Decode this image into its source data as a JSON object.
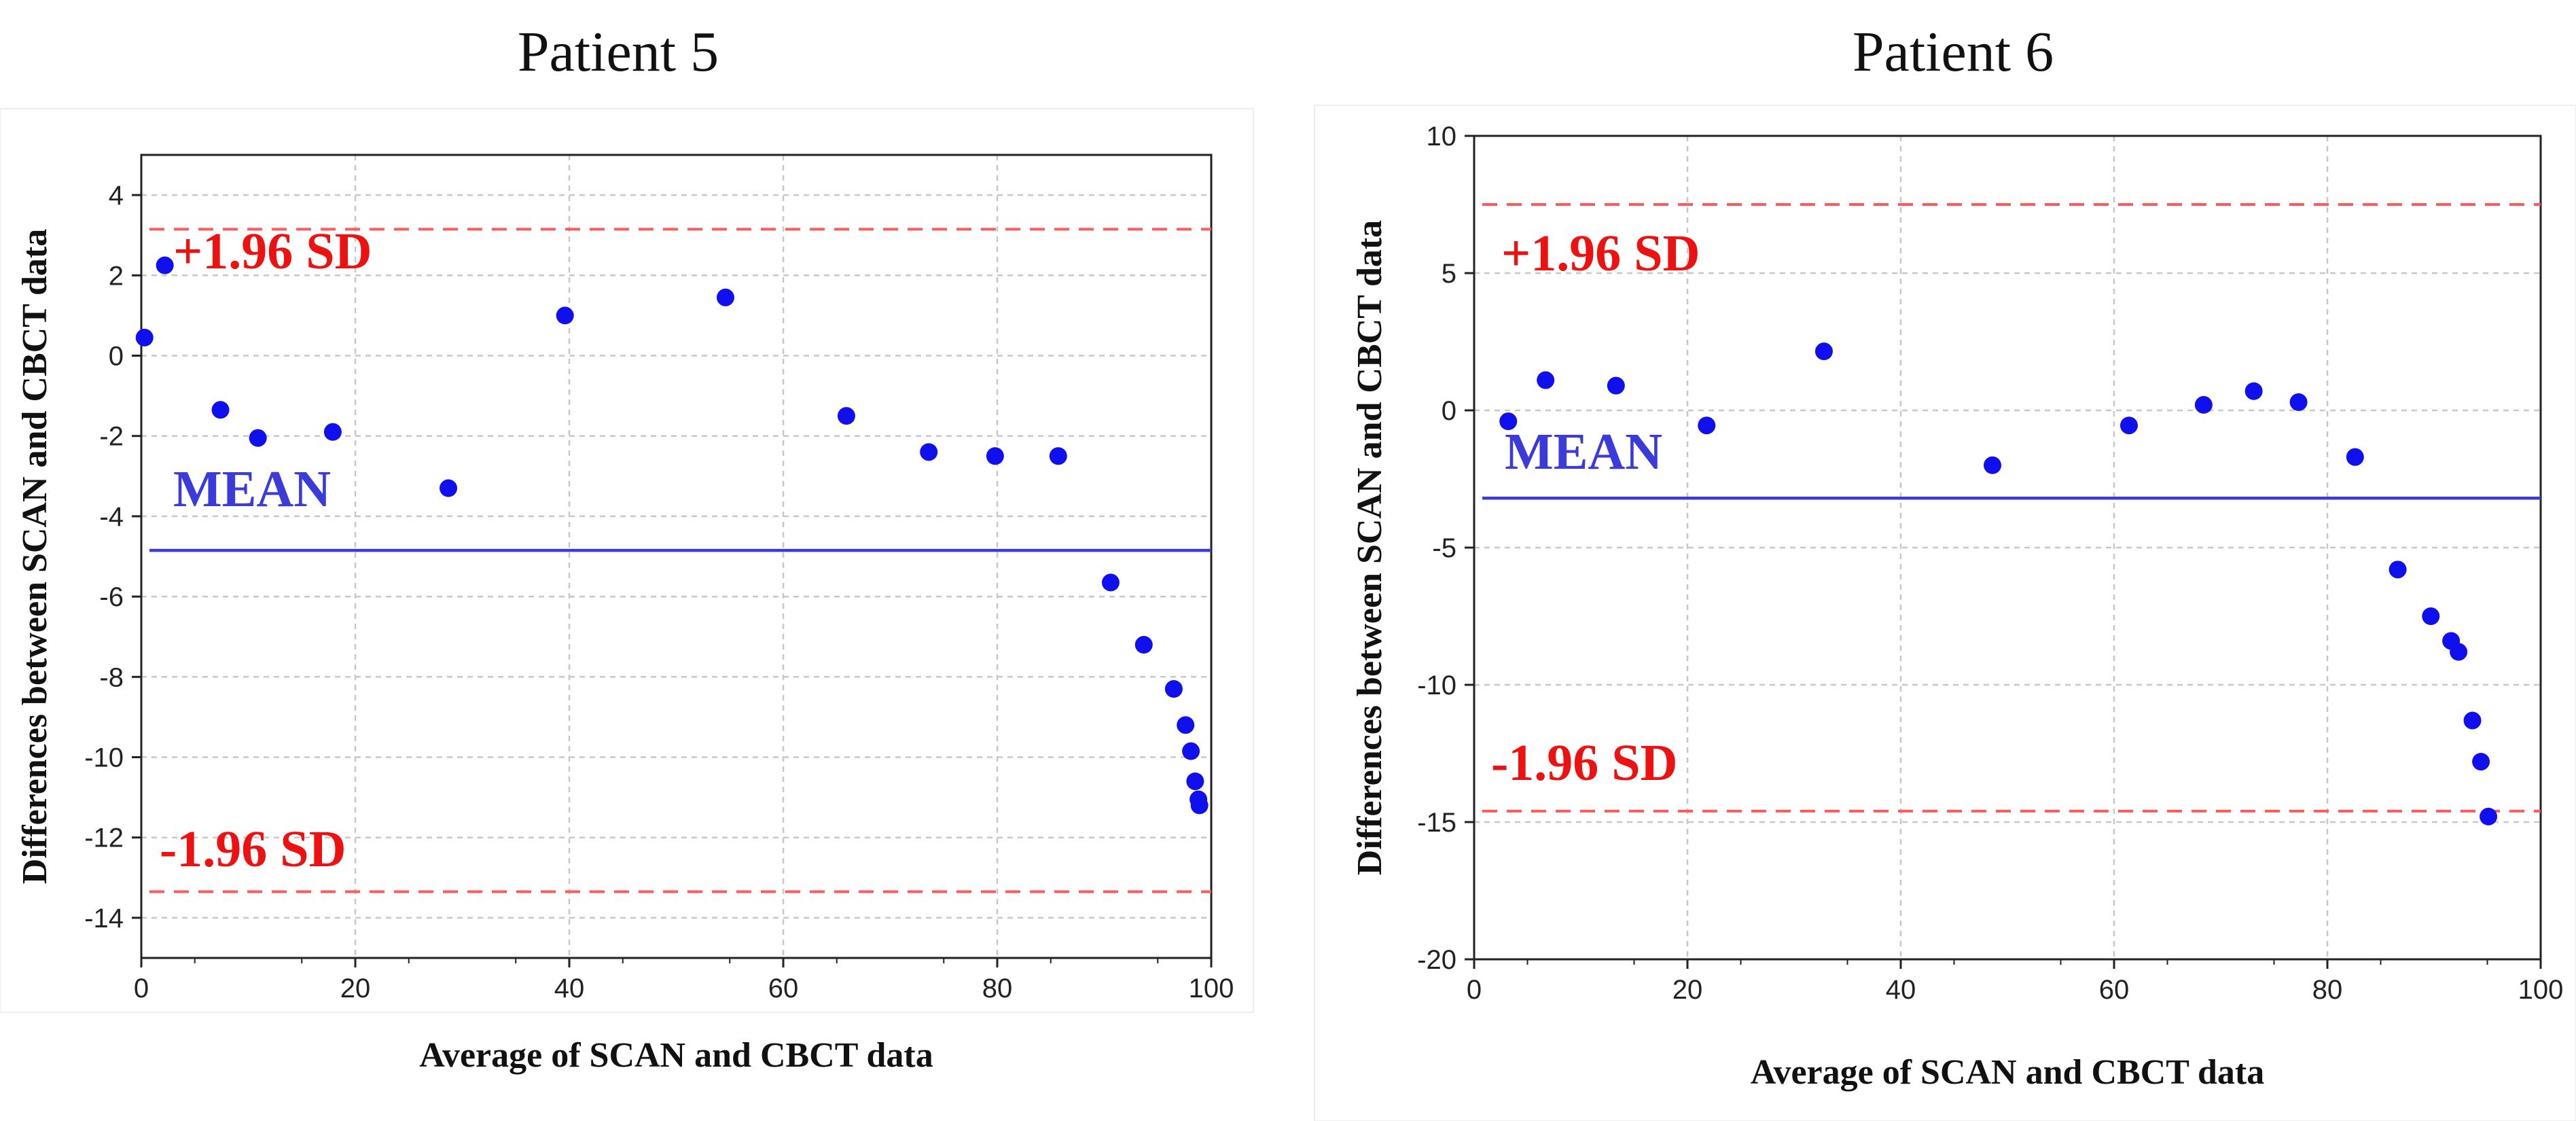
{
  "page": {
    "titles": [
      "Patient 5",
      "Patient 6"
    ]
  },
  "colors": {
    "point": "#1010ee",
    "mean": "#3b3bdc",
    "sd": "#ff5a5a",
    "sdText": "#ee1111",
    "grid": "#c8c8c8"
  },
  "chart_data": [
    {
      "type": "scatter",
      "title": "Patient 5",
      "xlabel": "Average of SCAN and CBCT data",
      "ylabel": "Differences between SCAN and CBCT data",
      "xlim": [
        0,
        100
      ],
      "ylim": [
        -15,
        5
      ],
      "xticks": [
        0,
        20,
        40,
        60,
        80,
        100
      ],
      "yticks": [
        -14,
        -12,
        -10,
        -8,
        -6,
        -4,
        -2,
        0,
        2,
        4
      ],
      "grid": true,
      "mean": -4.85,
      "upper_loa": 3.15,
      "lower_loa": -13.35,
      "labels": {
        "mean": "MEAN",
        "upper": "+1.96 SD",
        "lower": "-1.96 SD"
      },
      "points": [
        [
          0.3,
          0.45
        ],
        [
          2.2,
          2.25
        ],
        [
          7.4,
          -1.35
        ],
        [
          10.9,
          -2.05
        ],
        [
          17.9,
          -1.9
        ],
        [
          28.7,
          -3.3
        ],
        [
          39.6,
          1.0
        ],
        [
          54.6,
          1.45
        ],
        [
          65.9,
          -1.5
        ],
        [
          73.6,
          -2.4
        ],
        [
          79.8,
          -2.5
        ],
        [
          85.7,
          -2.5
        ],
        [
          90.6,
          -5.65
        ],
        [
          93.7,
          -7.2
        ],
        [
          96.5,
          -8.3
        ],
        [
          97.6,
          -9.2
        ],
        [
          98.1,
          -9.85
        ],
        [
          98.5,
          -10.6
        ],
        [
          98.8,
          -11.05
        ],
        [
          98.9,
          -11.2
        ]
      ]
    },
    {
      "type": "scatter",
      "title": "Patient 6",
      "xlabel": "Average of SCAN and CBCT data",
      "ylabel": "Differences between SCAN and CBCT data",
      "xlim": [
        0,
        100
      ],
      "ylim": [
        -20,
        10
      ],
      "xticks": [
        0,
        20,
        40,
        60,
        80,
        100
      ],
      "yticks": [
        -20,
        -15,
        -10,
        -5,
        0,
        5,
        10
      ],
      "grid": true,
      "mean": -3.2,
      "upper_loa": 7.5,
      "lower_loa": -14.6,
      "labels": {
        "mean": "MEAN",
        "upper": "+1.96 SD",
        "lower": "-1.96 SD"
      },
      "points": [
        [
          3.2,
          -0.4
        ],
        [
          6.7,
          1.1
        ],
        [
          13.3,
          0.9
        ],
        [
          21.8,
          -0.55
        ],
        [
          32.8,
          2.15
        ],
        [
          48.6,
          -2.0
        ],
        [
          61.4,
          -0.55
        ],
        [
          68.4,
          0.2
        ],
        [
          73.1,
          0.7
        ],
        [
          77.3,
          0.3
        ],
        [
          82.6,
          -1.7
        ],
        [
          86.6,
          -5.8
        ],
        [
          89.7,
          -7.5
        ],
        [
          91.6,
          -8.4
        ],
        [
          92.3,
          -8.8
        ],
        [
          93.6,
          -11.3
        ],
        [
          94.4,
          -12.8
        ],
        [
          95.1,
          -14.8
        ]
      ]
    }
  ]
}
